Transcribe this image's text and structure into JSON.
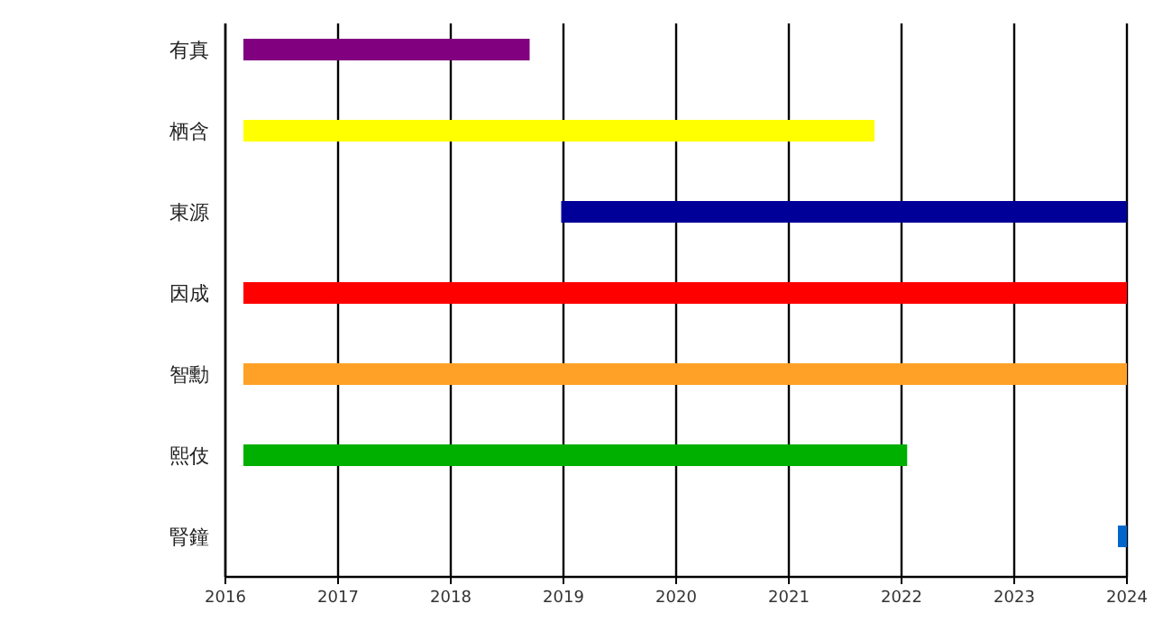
{
  "chart_data": {
    "type": "bar",
    "orientation": "horizontal",
    "categories": [
      "有真",
      "栖含",
      "東源",
      "因成",
      "智勳",
      "熙伎",
      "腎鐘"
    ],
    "base": [
      2016.16,
      2016.16,
      2018.98,
      2016.16,
      2016.16,
      2016.16,
      2023.92
    ],
    "values": [
      2.54,
      5.6,
      5.02,
      7.84,
      7.84,
      5.89,
      0.08
    ],
    "colors": [
      "#800080",
      "#ffff00",
      "#000099",
      "#ff0000",
      "#ffa126",
      "#00b000",
      "#0066cc"
    ],
    "xlim": [
      2016,
      2024
    ],
    "xticks": [
      2016,
      2017,
      2018,
      2019,
      2020,
      2021,
      2022,
      2023,
      2024
    ],
    "grid": "x"
  }
}
